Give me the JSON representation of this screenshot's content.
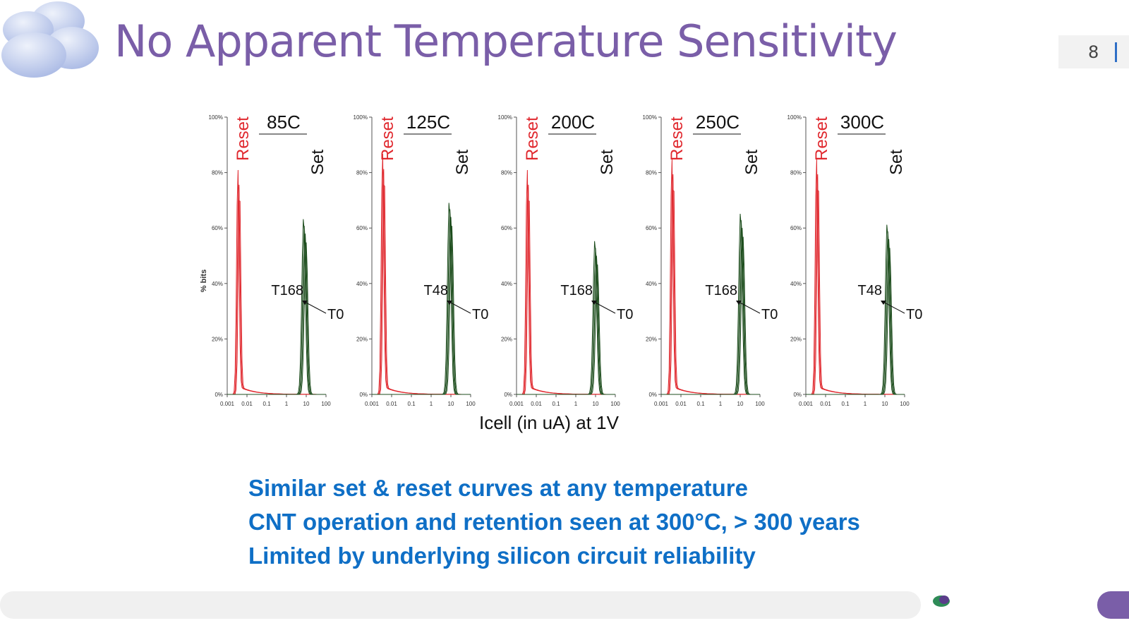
{
  "header": {
    "title": "No Apparent Temperature Sensitivity",
    "page_number": "8"
  },
  "figure": {
    "y_label": "% bits",
    "x_label": "Icell (in uA) at 1V",
    "y_ticks": [
      "100%",
      "80%",
      "60%",
      "40%",
      "20%",
      "0%"
    ],
    "x_ticks": [
      "0.001",
      "0.01",
      "0.1",
      "1",
      "10",
      "100"
    ],
    "panels": [
      {
        "temperature": "85C",
        "reset": "Reset",
        "set": "Set",
        "time": "T168",
        "t0": "T0"
      },
      {
        "temperature": "125C",
        "reset": "Reset",
        "set": "Set",
        "time": "T48",
        "t0": "T0"
      },
      {
        "temperature": "200C",
        "reset": "Reset",
        "set": "Set",
        "time": "T168",
        "t0": "T0"
      },
      {
        "temperature": "250C",
        "reset": "Reset",
        "set": "Set",
        "time": "T168",
        "t0": "T0"
      },
      {
        "temperature": "300C",
        "reset": "Reset",
        "set": "Set",
        "time": "T48",
        "t0": "T0"
      }
    ]
  },
  "bullets": [
    "Similar set & reset curves at any temperature",
    "CNT operation and retention seen at 300°C, > 300 years",
    "Limited by underlying silicon circuit reliability"
  ]
}
